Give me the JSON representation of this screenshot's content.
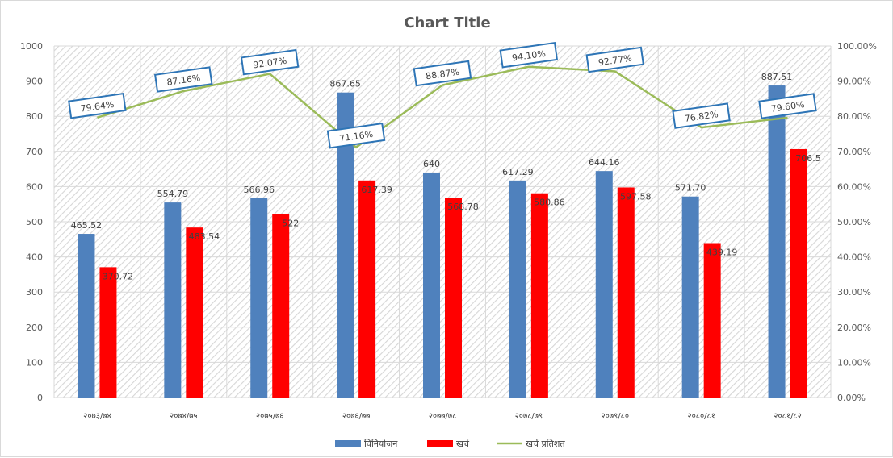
{
  "chart_data": {
    "type": "bar",
    "title": "Chart Title",
    "categories": [
      "२०७३/७४",
      "२०७४/७५",
      "२०७५/७६",
      "२०७६/७७",
      "२०७७/७८",
      "२०७८/७९",
      "२०७९/८०",
      "२०८०/८१",
      "२०८१/८२"
    ],
    "series": [
      {
        "name": "विनियोजन",
        "type": "bar",
        "axis": "left",
        "color": "#4f81bd",
        "values": [
          465.52,
          554.79,
          566.96,
          867.65,
          640,
          617.29,
          644.16,
          571.7,
          887.51
        ],
        "labels": [
          "465.52",
          "554.79",
          "566.96",
          "867.65",
          "640",
          "617.29",
          "644.16",
          "571.70",
          "887.51"
        ]
      },
      {
        "name": "खर्च",
        "type": "bar",
        "axis": "left",
        "color": "#ff0000",
        "values": [
          370.72,
          483.54,
          522,
          617.39,
          568.78,
          580.86,
          597.58,
          439.19,
          706.5
        ],
        "labels": [
          "370.72",
          "483.54",
          "522",
          "617.39",
          "568.78",
          "580.86",
          "597.58",
          "439.19",
          "706.5"
        ]
      },
      {
        "name": "खर्च प्रतिशत",
        "type": "line",
        "axis": "right",
        "color": "#9bbb59",
        "values": [
          79.64,
          87.16,
          92.07,
          71.16,
          88.87,
          94.1,
          92.77,
          76.82,
          79.6
        ],
        "labels": [
          "79.64%",
          "87.16%",
          "92.07%",
          "71.16%",
          "88.87%",
          "94.10%",
          "92.77%",
          "76.82%",
          "79.60%"
        ]
      }
    ],
    "y_left": {
      "min": 0,
      "max": 1000,
      "step": 100,
      "ticks": [
        "0",
        "100",
        "200",
        "300",
        "400",
        "500",
        "600",
        "700",
        "800",
        "900",
        "1000"
      ]
    },
    "y_right": {
      "min": 0,
      "max": 100,
      "step": 10,
      "ticks": [
        "0.00%",
        "10.00%",
        "20.00%",
        "30.00%",
        "40.00%",
        "50.00%",
        "60.00%",
        "70.00%",
        "80.00%",
        "90.00%",
        "100.00%"
      ]
    },
    "grid": true,
    "legend": "bottom"
  }
}
